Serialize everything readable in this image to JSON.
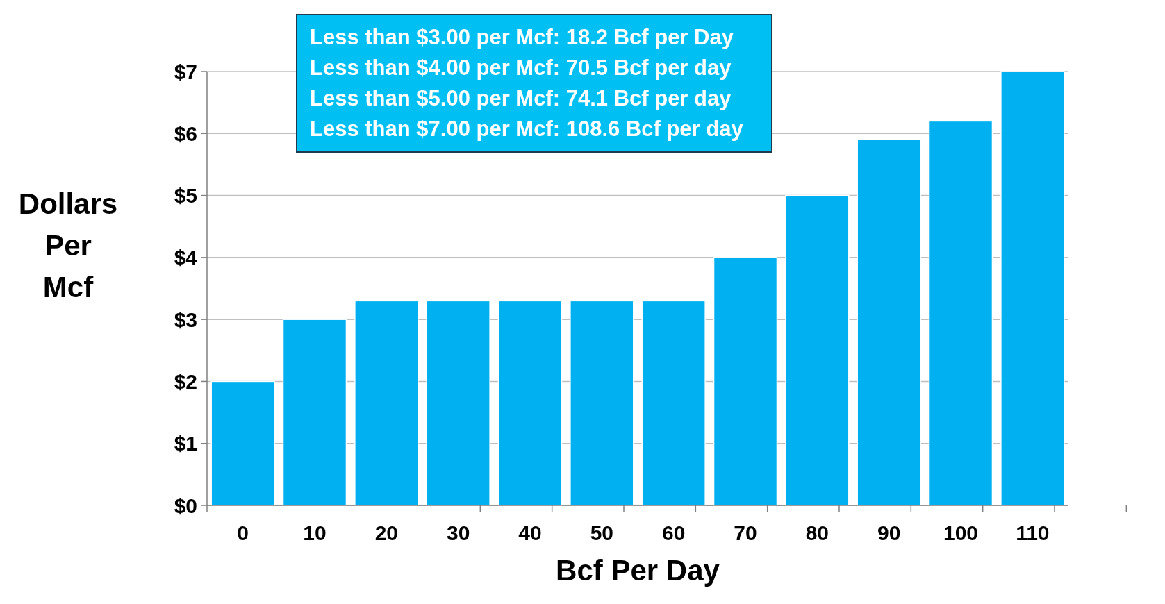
{
  "chart_data": {
    "type": "bar",
    "xlabel": "Bcf Per Day",
    "ylabel": "Dollars Per Mcf",
    "categories": [
      "0",
      "10",
      "20",
      "30",
      "40",
      "50",
      "60",
      "70",
      "80",
      "90",
      "100",
      "110"
    ],
    "values": [
      2.0,
      3.0,
      3.3,
      3.3,
      3.3,
      3.3,
      3.3,
      4.0,
      5.0,
      5.9,
      6.2,
      7.0
    ],
    "color": "#00b0f0",
    "ylim": [
      0,
      7
    ],
    "yticks": [
      {
        "value": 0,
        "label": "$0"
      },
      {
        "value": 1,
        "label": "$1"
      },
      {
        "value": 2,
        "label": "$2"
      },
      {
        "value": 3,
        "label": "$3"
      },
      {
        "value": 4,
        "label": "$4"
      },
      {
        "value": 5,
        "label": "$5"
      },
      {
        "value": 6,
        "label": "$6"
      },
      {
        "value": 7,
        "label": "$7"
      }
    ],
    "grid": "y",
    "annotations": [
      "Less than $3.00 per Mcf:  18.2 Bcf per Day",
      "Less than $4.00 per Mcf:  70.5 Bcf per day",
      "Less than $5.00 per Mcf:  74.1 Bcf per day",
      "Less than $7.00 per Mcf:  108.6 Bcf per day"
    ]
  }
}
